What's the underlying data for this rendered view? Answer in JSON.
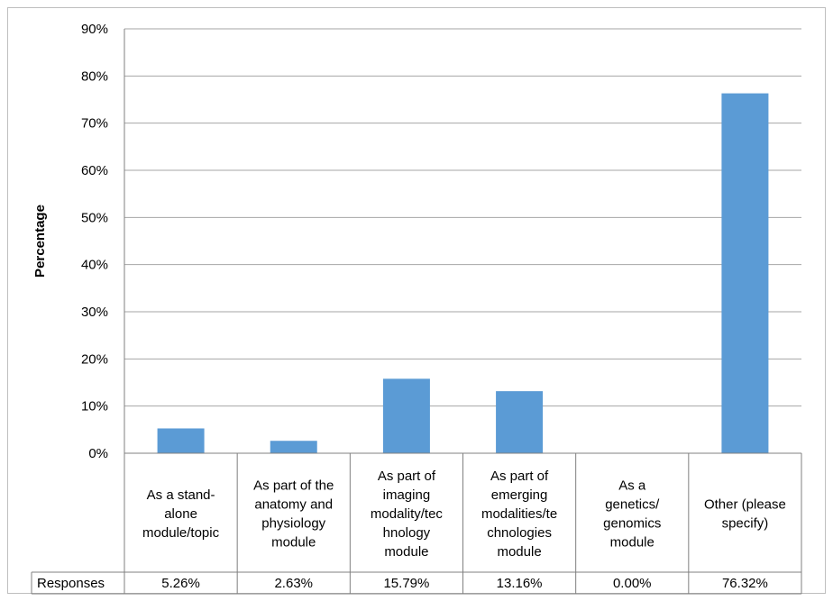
{
  "chart_data": {
    "type": "bar",
    "ylabel": "Percentage",
    "ylim": [
      0,
      90
    ],
    "yticks": [
      "0%",
      "10%",
      "20%",
      "30%",
      "40%",
      "50%",
      "60%",
      "70%",
      "80%",
      "90%"
    ],
    "grid": true,
    "categories": [
      [
        "As a stand-",
        "alone",
        "module/topic"
      ],
      [
        "As part of the",
        "anatomy and",
        "physiology",
        "module"
      ],
      [
        "As part of",
        "imaging",
        "modality/tec",
        "hnology",
        "module"
      ],
      [
        "As part of",
        "emerging",
        "modalities/te",
        "chnologies",
        "module"
      ],
      [
        "As a",
        "genetics/",
        "genomics",
        "module"
      ],
      [
        "Other (please",
        "specify)"
      ]
    ],
    "series": [
      {
        "name": "Responses",
        "values": [
          5.26,
          2.63,
          15.79,
          13.16,
          0.0,
          76.32
        ],
        "labels": [
          "5.26%",
          "2.63%",
          "15.79%",
          "13.16%",
          "0.00%",
          "76.32%"
        ]
      }
    ],
    "bar_color": "#5b9bd5",
    "grid_color": "#a6a6a6"
  }
}
